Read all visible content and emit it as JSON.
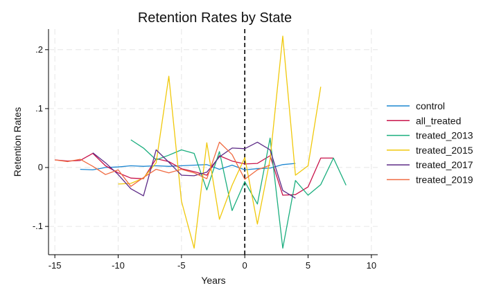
{
  "chart_data": {
    "type": "line",
    "title": "Retention Rates by State",
    "xlabel": "Years",
    "ylabel": "Retention Rates",
    "xlim": [
      -15.5,
      10.5
    ],
    "ylim": [
      -0.148,
      0.235
    ],
    "xticks": [
      -15,
      -10,
      -5,
      0,
      5,
      10
    ],
    "xtick_labels": [
      "-15",
      "-10",
      "-5",
      "0",
      "5",
      "10"
    ],
    "yticks": [
      -0.1,
      0,
      0.1,
      0.2
    ],
    "ytick_labels": [
      "-.1",
      "0",
      ".1",
      ".2"
    ],
    "grid": true,
    "reference_line": {
      "x": 0,
      "style": "dashed"
    },
    "legend_position": "right",
    "series": [
      {
        "name": "control",
        "color": "#1a85d1",
        "x": [
          -13,
          -12,
          -11,
          -10,
          -9,
          -8,
          -7,
          -6,
          -5,
          -4,
          -3,
          -2,
          -1,
          0,
          1,
          2,
          3,
          4
        ],
        "y": [
          -0.003,
          -0.004,
          0.0,
          0.001,
          0.003,
          0.002,
          0.003,
          0.002,
          0.003,
          0.004,
          0.005,
          -0.003,
          0.004,
          -0.004,
          -0.002,
          -0.001,
          0.005,
          0.007
        ]
      },
      {
        "name": "all_treated",
        "color": "#c8134a",
        "x": [
          -15,
          -14,
          -13,
          -12,
          -11,
          -10,
          -9,
          -8,
          -7,
          -6,
          -5,
          -4,
          -3,
          -2,
          -1,
          0,
          1,
          2,
          3,
          4,
          5,
          6,
          7
        ],
        "y": [
          0.013,
          0.011,
          0.012,
          0.024,
          0.003,
          -0.009,
          -0.018,
          -0.019,
          0.015,
          0.01,
          -0.002,
          -0.007,
          -0.013,
          0.02,
          0.011,
          0.006,
          0.007,
          0.02,
          -0.047,
          -0.046,
          -0.033,
          0.016,
          0.016
        ]
      },
      {
        "name": "treated_2013",
        "color": "#1aae7e",
        "x": [
          -9,
          -8,
          -7,
          -6,
          -5,
          -4,
          -3,
          -2,
          -1,
          0,
          1,
          2,
          3,
          4,
          5,
          6,
          7,
          8
        ],
        "y": [
          0.047,
          0.033,
          0.013,
          0.021,
          0.03,
          0.024,
          -0.038,
          0.027,
          -0.073,
          -0.024,
          -0.062,
          0.05,
          -0.137,
          -0.022,
          -0.047,
          -0.029,
          0.016,
          -0.03
        ]
      },
      {
        "name": "treated_2015",
        "color": "#f0c80a",
        "x": [
          -10,
          -9,
          -8,
          -7,
          -6,
          -5,
          -4,
          -3,
          -2,
          -1,
          0,
          1,
          2,
          3,
          4,
          5,
          6
        ],
        "y": [
          -0.028,
          -0.027,
          -0.018,
          0.008,
          0.155,
          -0.057,
          -0.137,
          0.042,
          -0.088,
          -0.03,
          0.017,
          -0.096,
          0.014,
          0.223,
          -0.013,
          0.003,
          0.137
        ]
      },
      {
        "name": "treated_2017",
        "color": "#5c2a86",
        "x": [
          -12,
          -11,
          -10,
          -9,
          -8,
          -7,
          -6,
          -5,
          -4,
          -3,
          -2,
          -1,
          0,
          1,
          2,
          3,
          4
        ],
        "y": [
          0.025,
          0.008,
          -0.012,
          -0.036,
          -0.048,
          0.03,
          0.009,
          -0.013,
          -0.014,
          -0.008,
          0.018,
          0.033,
          0.032,
          0.043,
          0.03,
          -0.039,
          -0.052
        ]
      },
      {
        "name": "treated_2019",
        "color": "#f06a40",
        "x": [
          -15,
          -14,
          -13,
          -12,
          -11,
          -10,
          -9,
          -8,
          -7,
          -6,
          -5,
          -4,
          -3,
          -2,
          -1,
          0,
          1,
          2
        ],
        "y": [
          0.013,
          0.01,
          0.014,
          0.002,
          -0.012,
          -0.004,
          -0.032,
          -0.017,
          -0.003,
          -0.009,
          -0.003,
          -0.009,
          -0.019,
          0.043,
          0.022,
          -0.02,
          -0.004,
          0.004
        ]
      }
    ]
  }
}
